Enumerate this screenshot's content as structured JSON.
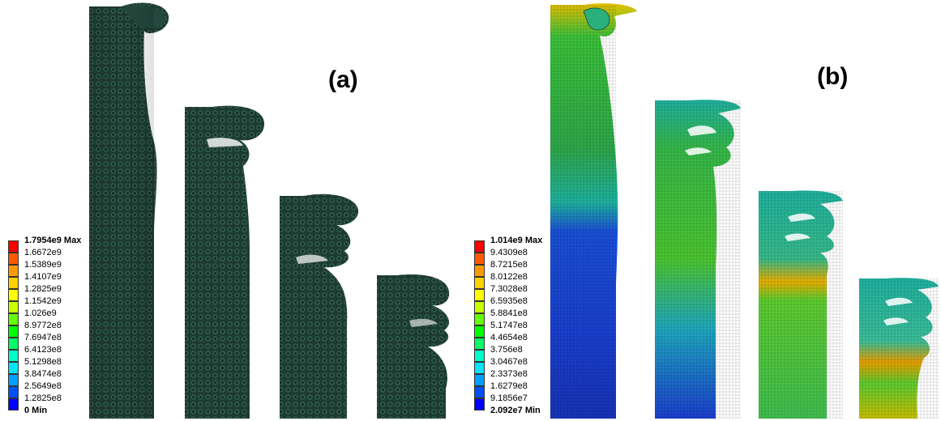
{
  "panels": [
    {
      "label": "(a)",
      "legend": {
        "max_label": "1.7954e9 Max",
        "min_label": "0 Min",
        "values": [
          "1.7954e9 Max",
          "1.6672e9",
          "1.5389e9",
          "1.4107e9",
          "1.2825e9",
          "1.1542e9",
          "1.026e9",
          "8.9772e8",
          "7.6947e8",
          "6.4123e8",
          "5.1298e8",
          "3.8474e8",
          "2.5649e8",
          "1.2825e8",
          "0 Min"
        ],
        "colors": [
          "#ff0000",
          "#ff5a00",
          "#ff9900",
          "#ffd200",
          "#ffff00",
          "#c8ff00",
          "#64ff00",
          "#00ff00",
          "#00ff64",
          "#00ffc8",
          "#00e6ff",
          "#00a0ff",
          "#0050ff",
          "#0000ff"
        ]
      }
    },
    {
      "label": "(b)",
      "legend": {
        "max_label": "1.014e9 Max",
        "min_label": "2.092e7 Min",
        "values": [
          "1.014e9 Max",
          "9.4309e8",
          "8.7215e8",
          "8.0122e8",
          "7.3028e8",
          "6.5935e8",
          "5.8841e8",
          "5.1747e8",
          "4.4654e8",
          "3.756e8",
          "3.0467e8",
          "2.3373e8",
          "1.6279e8",
          "9.1856e7",
          "2.092e7 Min"
        ],
        "colors": [
          "#ff0000",
          "#ff5a00",
          "#ff9900",
          "#ffd200",
          "#ffff00",
          "#c8ff00",
          "#64ff00",
          "#00ff00",
          "#00ff64",
          "#00ffc8",
          "#00e6ff",
          "#00a0ff",
          "#0050ff",
          "#0000ff"
        ]
      }
    }
  ],
  "colors": {
    "mesh_dark": "#1d3b36",
    "mesh_green": "#2f8f3a",
    "mesh_blue": "#1f45c8"
  }
}
